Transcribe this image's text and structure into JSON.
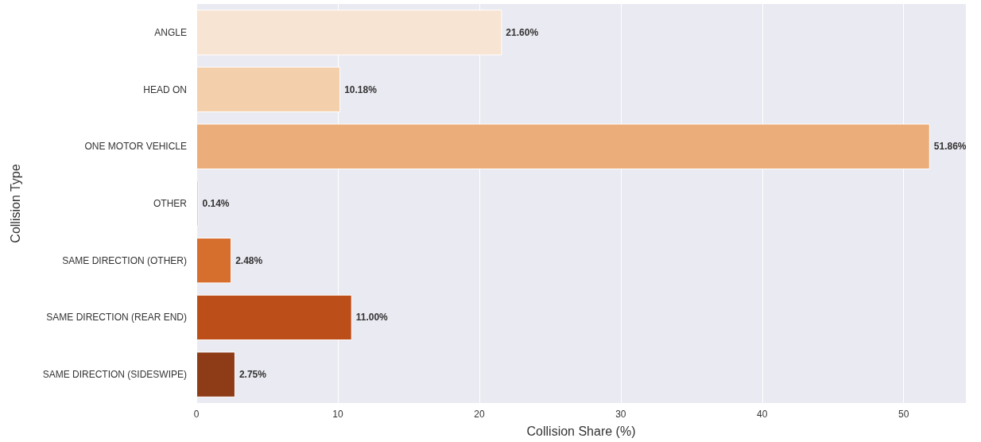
{
  "chart_data": {
    "type": "bar",
    "orientation": "horizontal",
    "xlabel": "Collision Share (%)",
    "ylabel": "Collision Type",
    "categories": [
      "ANGLE",
      "HEAD ON",
      "ONE MOTOR VEHICLE",
      "OTHER",
      "SAME DIRECTION (OTHER)",
      "SAME DIRECTION (REAR END)",
      "SAME DIRECTION (SIDESWIPE)"
    ],
    "values": [
      21.6,
      10.18,
      51.86,
      0.14,
      2.48,
      11.0,
      2.75
    ],
    "value_labels": [
      "21.60%",
      "10.18%",
      "51.86%",
      "0.14%",
      "2.48%",
      "11.00%",
      "2.75%"
    ],
    "colors": [
      "#f8e4d2",
      "#f3cfac",
      "#ebae7b",
      "#ee8036",
      "#d66e2e",
      "#bc4f19",
      "#8e3b17"
    ],
    "xlim": [
      0,
      54.4
    ],
    "xticks": [
      0,
      10,
      20,
      30,
      40,
      50
    ],
    "grid": "x"
  }
}
